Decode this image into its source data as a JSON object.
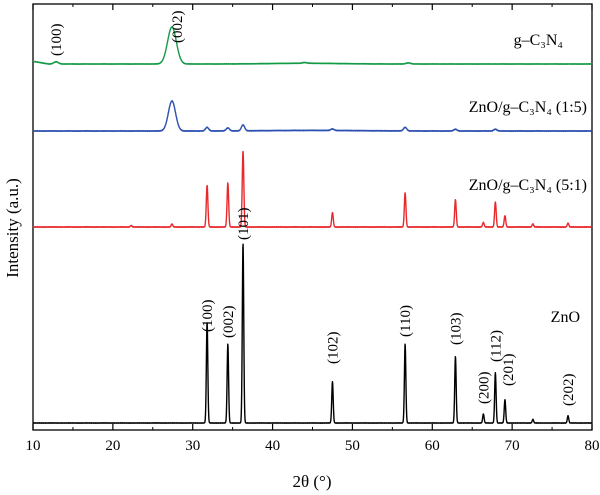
{
  "chart_data": {
    "type": "line",
    "title": "",
    "xlabel": "2θ (°)",
    "ylabel": "Intensity (a.u.)",
    "xlim": [
      10,
      80
    ],
    "x_ticks": [
      10,
      20,
      30,
      40,
      50,
      60,
      70,
      80
    ],
    "y_ticks_shown": false,
    "grid": false,
    "legend": "none",
    "series": [
      {
        "name": "ZnO",
        "color": "#000000",
        "peaks": [
          {
            "x": 31.8,
            "h": 0.56
          },
          {
            "x": 34.4,
            "h": 0.44
          },
          {
            "x": 36.3,
            "h": 1.0
          },
          {
            "x": 47.5,
            "h": 0.23
          },
          {
            "x": 56.6,
            "h": 0.44
          },
          {
            "x": 62.9,
            "h": 0.37
          },
          {
            "x": 66.4,
            "h": 0.05
          },
          {
            "x": 67.9,
            "h": 0.28
          },
          {
            "x": 69.1,
            "h": 0.13
          },
          {
            "x": 72.6,
            "h": 0.02
          },
          {
            "x": 77.0,
            "h": 0.04
          }
        ]
      },
      {
        "name": "ZnO/g–C3N4 (5:1)",
        "color": "#e8292b",
        "peaks": [
          {
            "x": 22.3,
            "h": 0.02
          },
          {
            "x": 27.4,
            "h": 0.04
          },
          {
            "x": 31.8,
            "h": 0.55
          },
          {
            "x": 34.4,
            "h": 0.58
          },
          {
            "x": 36.3,
            "h": 1.0
          },
          {
            "x": 47.5,
            "h": 0.19
          },
          {
            "x": 56.6,
            "h": 0.45
          },
          {
            "x": 62.9,
            "h": 0.36
          },
          {
            "x": 66.4,
            "h": 0.06
          },
          {
            "x": 67.9,
            "h": 0.33
          },
          {
            "x": 69.1,
            "h": 0.15
          },
          {
            "x": 72.6,
            "h": 0.04
          },
          {
            "x": 77.0,
            "h": 0.05
          }
        ]
      },
      {
        "name": "ZnO/g–C3N4 (1:5)",
        "color": "#2a4fb0",
        "peaks": [
          {
            "x": 27.4,
            "h": 1.0
          },
          {
            "x": 31.8,
            "h": 0.12
          },
          {
            "x": 34.4,
            "h": 0.1
          },
          {
            "x": 36.3,
            "h": 0.2
          },
          {
            "x": 47.5,
            "h": 0.05
          },
          {
            "x": 56.6,
            "h": 0.12
          },
          {
            "x": 62.9,
            "h": 0.06
          },
          {
            "x": 67.9,
            "h": 0.06
          }
        ]
      },
      {
        "name": "g–C3N4",
        "color": "#139a47",
        "peaks": [
          {
            "x": 12.9,
            "h": 0.06
          },
          {
            "x": 27.4,
            "h": 1.0
          },
          {
            "x": 44.0,
            "h": 0.02
          },
          {
            "x": 57.0,
            "h": 0.03
          }
        ]
      }
    ],
    "series_labels": [
      {
        "text": "ZnO"
      },
      {
        "text": "ZnO/g–C₃N₄ (5:1)"
      },
      {
        "text": "ZnO/g–C₃N₄ (1:5)"
      },
      {
        "text": "g–C₃N₄"
      }
    ],
    "peak_annotations": [
      {
        "text": "(100)",
        "x": 31.8,
        "series": "ZnO"
      },
      {
        "text": "(002)",
        "x": 34.4,
        "series": "ZnO"
      },
      {
        "text": "(101)",
        "x": 36.3,
        "series": "ZnO"
      },
      {
        "text": "(102)",
        "x": 47.5,
        "series": "ZnO"
      },
      {
        "text": "(110)",
        "x": 56.6,
        "series": "ZnO"
      },
      {
        "text": "(103)",
        "x": 62.9,
        "series": "ZnO"
      },
      {
        "text": "(200)",
        "x": 66.4,
        "series": "ZnO"
      },
      {
        "text": "(112)",
        "x": 67.9,
        "series": "ZnO"
      },
      {
        "text": "(201)",
        "x": 69.1,
        "series": "ZnO"
      },
      {
        "text": "(202)",
        "x": 77.0,
        "series": "ZnO"
      },
      {
        "text": "(100)",
        "x": 12.9,
        "series": "g–C3N4"
      },
      {
        "text": "(002)",
        "x": 27.4,
        "series": "g–C3N4"
      }
    ]
  }
}
